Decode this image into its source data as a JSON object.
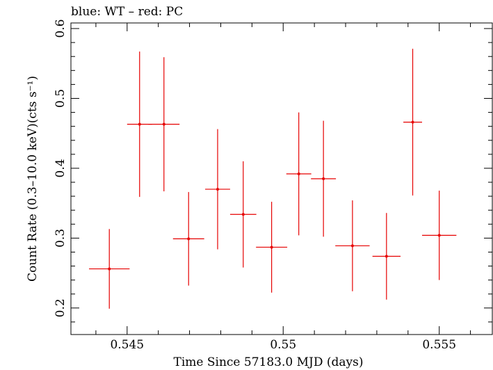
{
  "chart_data": {
    "type": "scatter",
    "title": "blue: WT – red: PC",
    "xlabel": "Time Since 57183.0 MJD (days)",
    "ylabel": "Count Rate (0.3–10.0 keV)(cts s⁻¹)",
    "xlim": [
      0.5432,
      0.5567
    ],
    "ylim": [
      0.162,
      0.608
    ],
    "x_ticks_major": [
      0.545,
      0.55,
      0.555
    ],
    "x_tick_labels": [
      "0.545",
      "0.55",
      "0.555"
    ],
    "y_ticks_major": [
      0.2,
      0.3,
      0.4,
      0.5,
      0.6
    ],
    "y_tick_labels": [
      "0.2",
      "0.3",
      "0.4",
      "0.5",
      "0.6"
    ],
    "grid": false,
    "series": [
      {
        "color": "#e60000",
        "points": [
          {
            "x": 0.54443,
            "xerr": 0.00065,
            "y": 0.256,
            "yerr": 0.057
          },
          {
            "x": 0.5454,
            "xerr": 0.0004,
            "y": 0.463,
            "yerr": 0.104
          },
          {
            "x": 0.54618,
            "xerr": 0.0005,
            "y": 0.463,
            "yerr": 0.096
          },
          {
            "x": 0.54697,
            "xerr": 0.0005,
            "y": 0.299,
            "yerr": 0.067
          },
          {
            "x": 0.5479,
            "xerr": 0.0004,
            "y": 0.37,
            "yerr": 0.086
          },
          {
            "x": 0.54872,
            "xerr": 0.00042,
            "y": 0.334,
            "yerr": 0.076
          },
          {
            "x": 0.54963,
            "xerr": 0.0005,
            "y": 0.287,
            "yerr": 0.065
          },
          {
            "x": 0.5505,
            "xerr": 0.0004,
            "y": 0.392,
            "yerr": 0.088
          },
          {
            "x": 0.55129,
            "xerr": 0.0004,
            "y": 0.385,
            "yerr": 0.083
          },
          {
            "x": 0.55222,
            "xerr": 0.00055,
            "y": 0.289,
            "yerr": 0.065
          },
          {
            "x": 0.55331,
            "xerr": 0.00045,
            "y": 0.274,
            "yerr": 0.062
          },
          {
            "x": 0.55415,
            "xerr": 0.0003,
            "y": 0.466,
            "yerr": 0.105
          },
          {
            "x": 0.555,
            "xerr": 0.00055,
            "y": 0.304,
            "yerr": 0.064
          }
        ]
      }
    ]
  }
}
